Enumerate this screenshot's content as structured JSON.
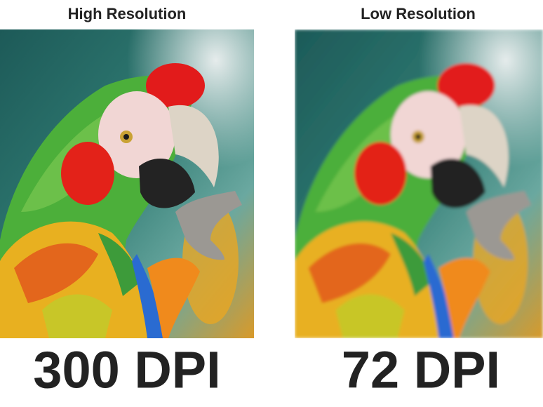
{
  "panels": [
    {
      "title": "High Resolution",
      "label": "300 DPI"
    },
    {
      "title": "Low Resolution",
      "label": "72 DPI"
    }
  ]
}
